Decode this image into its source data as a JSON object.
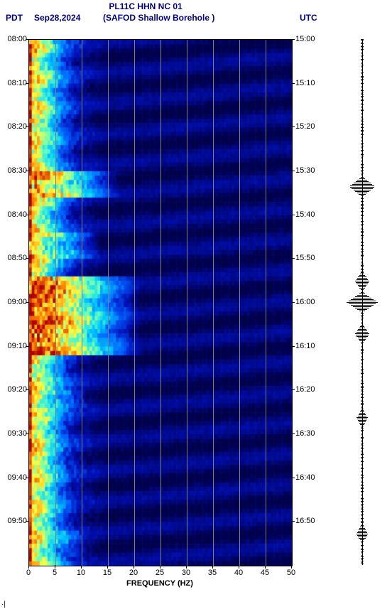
{
  "header": {
    "title": "PL11C HHN NC 01",
    "tz_left": "PDT",
    "date": "Sep28,2024",
    "station": "(SAFOD Shallow Borehole )",
    "tz_right": "UTC"
  },
  "chart": {
    "type": "spectrogram",
    "xaxis": {
      "label": "FREQUENCY (HZ)",
      "min": 0,
      "max": 50,
      "step": 5,
      "ticks": [
        0,
        5,
        10,
        15,
        20,
        25,
        30,
        35,
        40,
        45,
        50
      ]
    },
    "yaxis_left": {
      "ticks": [
        "08:00",
        "08:10",
        "08:20",
        "08:30",
        "08:40",
        "08:50",
        "09:00",
        "09:10",
        "09:20",
        "09:30",
        "09:40",
        "09:50"
      ]
    },
    "yaxis_right": {
      "ticks": [
        "15:00",
        "15:10",
        "15:20",
        "15:30",
        "15:40",
        "15:50",
        "16:00",
        "16:10",
        "16:20",
        "16:30",
        "16:40",
        "16:50"
      ]
    },
    "time_rows": 120,
    "freq_cols": 100,
    "palette": {
      "low": "#00004c",
      "mid1": "#0010b8",
      "mid2": "#0060ff",
      "mid3": "#00c8ff",
      "mid4": "#60ffc0",
      "mid5": "#ffff40",
      "mid6": "#ff8000",
      "high": "#b00000"
    },
    "grid_color": "#808080",
    "background_color": "#ffffff",
    "tick_fontsize": 11,
    "label_fontsize": 11,
    "hot_bands": [
      {
        "t0": 0,
        "t1": 120,
        "fmax": 1,
        "level": 1.0,
        "note": "very-low-freq edge stripe"
      },
      {
        "t0": 30,
        "t1": 36,
        "fmax": 18,
        "level": 0.85
      },
      {
        "t0": 54,
        "t1": 72,
        "fmax": 22,
        "level": 0.95
      },
      {
        "t0": 44,
        "t1": 50,
        "fmax": 14,
        "level": 0.7
      },
      {
        "t0": 80,
        "t1": 84,
        "fmax": 12,
        "level": 0.6
      },
      {
        "t0": 112,
        "t1": 118,
        "fmax": 12,
        "level": 0.55
      }
    ],
    "low_floor_level": 0.05,
    "decay_exp": 2.2
  },
  "waveform": {
    "n": 370,
    "base_amp": 2,
    "spikes": [
      {
        "t": 0.28,
        "amp": 18
      },
      {
        "t": 0.46,
        "amp": 10
      },
      {
        "t": 0.5,
        "amp": 22
      },
      {
        "t": 0.56,
        "amp": 10
      },
      {
        "t": 0.72,
        "amp": 8
      },
      {
        "t": 0.94,
        "amp": 8
      }
    ]
  },
  "footer_mark": "·|"
}
